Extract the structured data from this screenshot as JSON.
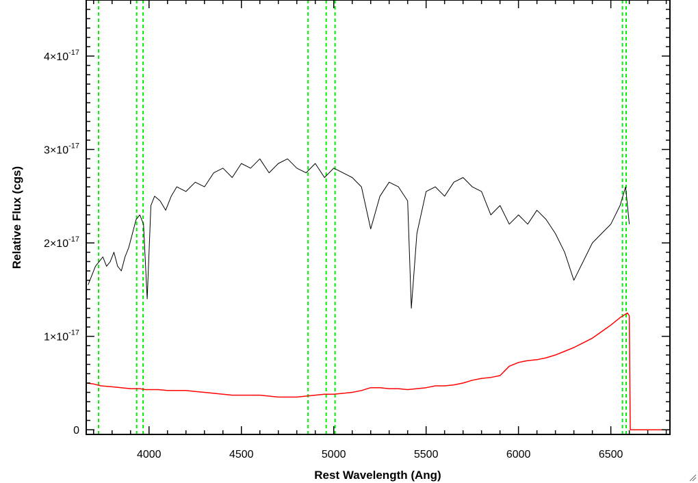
{
  "chart_data": {
    "type": "line",
    "title": "",
    "xlabel": "Rest Wavelength (Ang)",
    "ylabel": "Relative Flux (cgs)",
    "xlim": [
      3660,
      6820
    ],
    "ylim": [
      -5e-19,
      4.6e-17
    ],
    "x_ticks": [
      4000,
      4500,
      5000,
      5500,
      6000,
      6500
    ],
    "x_tick_labels": [
      "4000",
      "4500",
      "5000",
      "5500",
      "6000",
      "6500"
    ],
    "y_ticks": [
      0,
      1e-17,
      2e-17,
      3e-17,
      4e-17
    ],
    "y_tick_labels": [
      {
        "mantissa": "0",
        "exponent": ""
      },
      {
        "mantissa": "1×10",
        "exponent": "-17"
      },
      {
        "mantissa": "2×10",
        "exponent": "-17"
      },
      {
        "mantissa": "3×10",
        "exponent": "-17"
      },
      {
        "mantissa": "4×10",
        "exponent": "-17"
      }
    ],
    "grid": false,
    "legend": "none",
    "series": [
      {
        "color": "#000000",
        "x": [
          3670,
          3690,
          3710,
          3730,
          3750,
          3770,
          3790,
          3810,
          3830,
          3850,
          3870,
          3890,
          3910,
          3930,
          3950,
          3970,
          3990,
          4010,
          4030,
          4060,
          4090,
          4120,
          4150,
          4200,
          4250,
          4300,
          4350,
          4400,
          4450,
          4500,
          4550,
          4600,
          4650,
          4700,
          4750,
          4800,
          4850,
          4900,
          4950,
          5000,
          5050,
          5100,
          5150,
          5200,
          5250,
          5300,
          5350,
          5400,
          5420,
          5450,
          5500,
          5550,
          5600,
          5650,
          5700,
          5750,
          5800,
          5850,
          5900,
          5950,
          6000,
          6050,
          6100,
          6150,
          6200,
          6250,
          6300,
          6350,
          6400,
          6450,
          6500,
          6550,
          6580,
          6600
        ],
        "y": [
          1.55e-17,
          1.65e-17,
          1.75e-17,
          1.8e-17,
          1.85e-17,
          1.75e-17,
          1.8e-17,
          1.9e-17,
          1.75e-17,
          1.7e-17,
          1.85e-17,
          1.95e-17,
          2.1e-17,
          2.25e-17,
          2.3e-17,
          2.2e-17,
          1.4e-17,
          2.4e-17,
          2.5e-17,
          2.45e-17,
          2.35e-17,
          2.5e-17,
          2.6e-17,
          2.55e-17,
          2.65e-17,
          2.6e-17,
          2.75e-17,
          2.8e-17,
          2.7e-17,
          2.85e-17,
          2.8e-17,
          2.9e-17,
          2.75e-17,
          2.85e-17,
          2.9e-17,
          2.8e-17,
          2.75e-17,
          2.85e-17,
          2.7e-17,
          2.8e-17,
          2.75e-17,
          2.7e-17,
          2.6e-17,
          2.15e-17,
          2.5e-17,
          2.65e-17,
          2.6e-17,
          2.45e-17,
          1.3e-17,
          2.1e-17,
          2.55e-17,
          2.6e-17,
          2.5e-17,
          2.65e-17,
          2.7e-17,
          2.6e-17,
          2.55e-17,
          2.3e-17,
          2.4e-17,
          2.2e-17,
          2.3e-17,
          2.2e-17,
          2.35e-17,
          2.25e-17,
          2.1e-17,
          1.9e-17,
          1.6e-17,
          1.8e-17,
          2e-17,
          2.1e-17,
          2.2e-17,
          2.4e-17,
          2.6e-17,
          2.2e-17
        ]
      },
      {
        "color": "#ff0000",
        "x": [
          3660,
          3700,
          3740,
          3800,
          3850,
          3900,
          3950,
          3980,
          4000,
          4050,
          4100,
          4150,
          4200,
          4250,
          4300,
          4350,
          4400,
          4450,
          4500,
          4550,
          4600,
          4650,
          4700,
          4750,
          4800,
          4850,
          4900,
          4950,
          5000,
          5050,
          5100,
          5150,
          5200,
          5250,
          5300,
          5350,
          5400,
          5450,
          5500,
          5550,
          5600,
          5650,
          5700,
          5750,
          5800,
          5850,
          5900,
          5950,
          6000,
          6050,
          6100,
          6150,
          6200,
          6250,
          6300,
          6350,
          6400,
          6450,
          6500,
          6550,
          6590,
          6600,
          6605,
          6650,
          6700,
          6750,
          6820
        ],
        "y": [
          5e-18,
          4.9e-18,
          4.7e-18,
          4.6e-18,
          4.5e-18,
          4.4e-18,
          4.4e-18,
          4.3e-18,
          4.3e-18,
          4.3e-18,
          4.2e-18,
          4.2e-18,
          4.2e-18,
          4.1e-18,
          4e-18,
          3.9e-18,
          3.8e-18,
          3.7e-18,
          3.7e-18,
          3.7e-18,
          3.7e-18,
          3.6e-18,
          3.5e-18,
          3.5e-18,
          3.5e-18,
          3.6e-18,
          3.7e-18,
          3.8e-18,
          3.8e-18,
          3.9e-18,
          4e-18,
          4.2e-18,
          4.5e-18,
          4.5e-18,
          4.4e-18,
          4.4e-18,
          4.3e-18,
          4.4e-18,
          4.5e-18,
          4.7e-18,
          4.7e-18,
          4.8e-18,
          5e-18,
          5.3e-18,
          5.5e-18,
          5.6e-18,
          5.8e-18,
          6.8e-18,
          7.2e-18,
          7.4e-18,
          7.5e-18,
          7.7e-18,
          8e-18,
          8.4e-18,
          8.8e-18,
          9.3e-18,
          9.8e-18,
          1.05e-17,
          1.12e-17,
          1.2e-17,
          1.25e-17,
          1.22e-17,
          0,
          0,
          0,
          0,
          0
        ]
      }
    ],
    "line_markers": {
      "color": "#00ee00",
      "style": "dashed",
      "x": [
        3727,
        3933,
        3968,
        4861,
        4959,
        5007,
        6563,
        6583
      ]
    }
  }
}
